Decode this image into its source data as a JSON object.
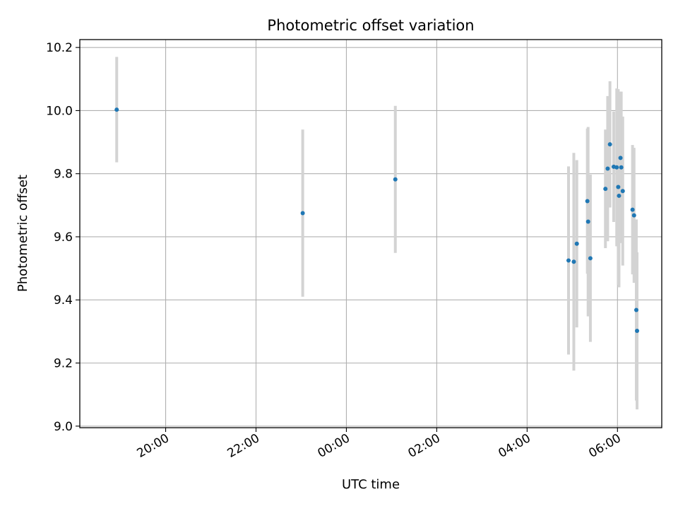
{
  "chart_data": {
    "type": "scatter",
    "title": "Photometric offset variation",
    "xlabel": "UTC time",
    "ylabel": "Photometric offset",
    "x_tick_labels": [
      "20:00",
      "22:00",
      "00:00",
      "02:00",
      "04:00",
      "06:00"
    ],
    "x_tick_hours": [
      20,
      22,
      24,
      26,
      28,
      30
    ],
    "x_range_hours": [
      18.1,
      30.98
    ],
    "ylim": [
      8.995,
      10.225
    ],
    "y_ticks": [
      9.0,
      9.2,
      9.4,
      9.6,
      9.8,
      10.0,
      10.2
    ],
    "y_tick_labels": [
      "9.0",
      "9.2",
      "9.4",
      "9.6",
      "9.8",
      "10.0",
      "10.2"
    ],
    "grid": true,
    "colors": {
      "points": "#1f77b4",
      "errorbars": "#d3d3d3",
      "grid": "#b0b0b0"
    },
    "points": [
      {
        "t": "18:55",
        "y": 10.003,
        "err": 0.167
      },
      {
        "t": "23:02",
        "y": 9.675,
        "err": 0.265
      },
      {
        "t": "01:05",
        "y": 9.782,
        "err": 0.233
      },
      {
        "t": "04:55",
        "y": 9.525,
        "err": 0.298
      },
      {
        "t": "05:02",
        "y": 9.521,
        "err": 0.345
      },
      {
        "t": "05:06",
        "y": 9.578,
        "err": 0.265
      },
      {
        "t": "05:20",
        "y": 9.713,
        "err": 0.23
      },
      {
        "t": "05:21",
        "y": 9.648,
        "err": 0.3
      },
      {
        "t": "05:24",
        "y": 9.532,
        "err": 0.265
      },
      {
        "t": "05:44",
        "y": 9.752,
        "err": 0.188
      },
      {
        "t": "05:47",
        "y": 9.816,
        "err": 0.23
      },
      {
        "t": "05:50",
        "y": 9.893,
        "err": 0.2
      },
      {
        "t": "05:55",
        "y": 9.822,
        "err": 0.175
      },
      {
        "t": "05:59",
        "y": 9.82,
        "err": 0.25
      },
      {
        "t": "06:01",
        "y": 9.758,
        "err": 0.31
      },
      {
        "t": "06:02",
        "y": 9.73,
        "err": 0.29
      },
      {
        "t": "06:04",
        "y": 9.85,
        "err": 0.21
      },
      {
        "t": "06:05",
        "y": 9.82,
        "err": 0.24
      },
      {
        "t": "06:07",
        "y": 9.745,
        "err": 0.236
      },
      {
        "t": "06:20",
        "y": 9.686,
        "err": 0.205
      },
      {
        "t": "06:22",
        "y": 9.668,
        "err": 0.214
      },
      {
        "t": "06:25",
        "y": 9.368,
        "err": 0.287
      },
      {
        "t": "06:26",
        "y": 9.302,
        "err": 0.249
      }
    ]
  }
}
